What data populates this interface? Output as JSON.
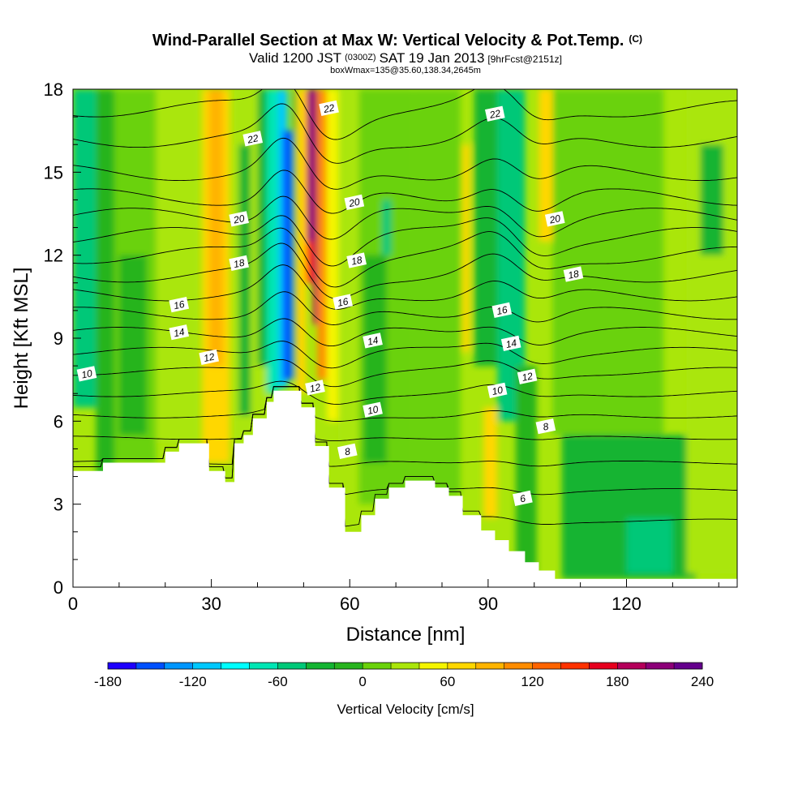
{
  "header": {
    "title": "Wind-Parallel Section at Max W: Vertical Velocity & Pot.Temp.",
    "copyright": "(C)",
    "valid_prefix": "Valid 1200 JST",
    "valid_utc": "(0300Z)",
    "valid_date": "SAT 19 Jan 2013",
    "forecast": "[9hrFcst@2151z]",
    "box_info": "boxWmax=135@35.60,138.34,2645m"
  },
  "chart_data": {
    "type": "heatmap",
    "xlabel": "Distance [nm]",
    "ylabel": "Height [Kft MSL]",
    "xlim": [
      0,
      144
    ],
    "ylim": [
      0,
      18
    ],
    "x_ticks": [
      "0",
      "30",
      "60",
      "90",
      "120"
    ],
    "x_tick_values": [
      0,
      30,
      60,
      90,
      120
    ],
    "y_ticks": [
      "0",
      "3",
      "6",
      "9",
      "12",
      "15",
      "18"
    ],
    "y_tick_values": [
      0,
      3,
      6,
      9,
      12,
      15,
      18
    ],
    "colorbar": {
      "label": "Vertical Velocity [cm/s]",
      "min": -180,
      "max": 240,
      "step": 20,
      "tick_labels": [
        "-180",
        "-120",
        "-60",
        "0",
        "60",
        "120",
        "180",
        "240"
      ],
      "tick_values": [
        -180,
        -120,
        -60,
        0,
        60,
        120,
        180,
        240
      ],
      "colors": [
        "#1e00ff",
        "#0050ff",
        "#0096ff",
        "#00c8ff",
        "#00ffff",
        "#00e6b4",
        "#00c878",
        "#14b432",
        "#28b41e",
        "#6ad20a",
        "#aae60a",
        "#f5f500",
        "#ffd700",
        "#ffb400",
        "#ff8c00",
        "#ff6400",
        "#ff3200",
        "#e6001e",
        "#b4005a",
        "#8c0078",
        "#64008c"
      ]
    },
    "velocity_cells": [
      {
        "x": [
          0,
          6
        ],
        "y": [
          6.5,
          18
        ],
        "w": -50
      },
      {
        "x": [
          5,
          9
        ],
        "y": [
          0,
          18
        ],
        "w": -20
      },
      {
        "x": [
          9,
          18
        ],
        "y": [
          4.5,
          18
        ],
        "w": 10
      },
      {
        "x": [
          10,
          16
        ],
        "y": [
          5.5,
          12
        ],
        "w": -20
      },
      {
        "x": [
          18,
          27
        ],
        "y": [
          5.2,
          18
        ],
        "w": 30
      },
      {
        "x": [
          28,
          34
        ],
        "y": [
          4.5,
          18
        ],
        "w": 60
      },
      {
        "x": [
          29.5,
          32.5
        ],
        "y": [
          8,
          18
        ],
        "w": 80
      },
      {
        "x": [
          35,
          42
        ],
        "y": [
          4.5,
          18
        ],
        "w": 20
      },
      {
        "x": [
          36,
          38.5
        ],
        "y": [
          6.2,
          16
        ],
        "w": -40
      },
      {
        "x": [
          40,
          42.5
        ],
        "y": [
          8,
          18
        ],
        "w": -40
      },
      {
        "x": [
          42,
          44.5
        ],
        "y": [
          7,
          18
        ],
        "w": -80
      },
      {
        "x": [
          44.5,
          46.5
        ],
        "y": [
          7.2,
          18
        ],
        "w": -120
      },
      {
        "x": [
          45.5,
          47.5
        ],
        "y": [
          7.5,
          16.5
        ],
        "w": -160
      },
      {
        "x": [
          47.5,
          48.5
        ],
        "y": [
          7.5,
          18
        ],
        "w": -40
      },
      {
        "x": [
          48.5,
          50.5
        ],
        "y": [
          7,
          18
        ],
        "w": 70
      },
      {
        "x": [
          50.5,
          52
        ],
        "y": [
          11,
          18
        ],
        "w": 150
      },
      {
        "x": [
          51,
          52.5
        ],
        "y": [
          12.5,
          18
        ],
        "w": 240
      },
      {
        "x": [
          52,
          53.5
        ],
        "y": [
          9.5,
          18
        ],
        "w": 180
      },
      {
        "x": [
          53,
          55
        ],
        "y": [
          7.5,
          18
        ],
        "w": 110
      },
      {
        "x": [
          55,
          57.5
        ],
        "y": [
          6,
          18
        ],
        "w": 50
      },
      {
        "x": [
          57.5,
          62
        ],
        "y": [
          5,
          18
        ],
        "w": 20
      },
      {
        "x": [
          62,
          74
        ],
        "y": [
          3,
          18
        ],
        "w": 5
      },
      {
        "x": [
          63,
          68
        ],
        "y": [
          4.5,
          12
        ],
        "w": -20
      },
      {
        "x": [
          67,
          69
        ],
        "y": [
          12,
          14
        ],
        "w": -60
      },
      {
        "x": [
          74,
          84
        ],
        "y": [
          3.3,
          18
        ],
        "w": 10
      },
      {
        "x": [
          84.5,
          86
        ],
        "y": [
          8.5,
          16
        ],
        "w": 60
      },
      {
        "x": [
          87,
          92
        ],
        "y": [
          8,
          18
        ],
        "w": -40
      },
      {
        "x": [
          89,
          92
        ],
        "y": [
          2.5,
          6.5
        ],
        "w": 60
      },
      {
        "x": [
          92,
          98
        ],
        "y": [
          6,
          18
        ],
        "w": -50
      },
      {
        "x": [
          96,
          100.5
        ],
        "y": [
          0.5,
          8
        ],
        "w": -20
      },
      {
        "x": [
          101,
          104
        ],
        "y": [
          12.5,
          18
        ],
        "w": 60
      },
      {
        "x": [
          104,
          128
        ],
        "y": [
          5.5,
          18
        ],
        "w": 10
      },
      {
        "x": [
          106,
          135
        ],
        "y": [
          0.3,
          5.5
        ],
        "w": -30
      },
      {
        "x": [
          120,
          130
        ],
        "y": [
          0.5,
          2.5
        ],
        "w": -60
      },
      {
        "x": [
          133,
          144
        ],
        "y": [
          0.5,
          18
        ],
        "w": 20
      },
      {
        "x": [
          136,
          141
        ],
        "y": [
          12,
          16
        ],
        "w": -30
      }
    ],
    "terrain": [
      [
        0,
        4.2
      ],
      [
        6.5,
        4.2
      ],
      [
        6.5,
        4.5
      ],
      [
        20,
        4.5
      ],
      [
        20,
        4.9
      ],
      [
        23,
        4.9
      ],
      [
        23,
        5.2
      ],
      [
        29.5,
        5.2
      ],
      [
        29.5,
        4.2
      ],
      [
        33,
        4.2
      ],
      [
        33,
        3.8
      ],
      [
        35,
        3.8
      ],
      [
        35,
        5.2
      ],
      [
        37,
        5.2
      ],
      [
        37,
        5.5
      ],
      [
        39,
        5.5
      ],
      [
        39,
        6.1
      ],
      [
        42,
        6.1
      ],
      [
        42,
        6.7
      ],
      [
        43.5,
        6.7
      ],
      [
        43.5,
        7.1
      ],
      [
        49.5,
        7.1
      ],
      [
        49.5,
        6.5
      ],
      [
        52.5,
        6.5
      ],
      [
        52.5,
        5.1
      ],
      [
        55.5,
        5.1
      ],
      [
        55.5,
        3.6
      ],
      [
        59,
        3.6
      ],
      [
        59,
        2
      ],
      [
        62.5,
        2
      ],
      [
        62.5,
        2.6
      ],
      [
        65.5,
        2.6
      ],
      [
        65.5,
        3.2
      ],
      [
        68.5,
        3.2
      ],
      [
        68.5,
        3.6
      ],
      [
        72,
        3.6
      ],
      [
        72,
        3.85
      ],
      [
        78.5,
        3.85
      ],
      [
        78.5,
        3.6
      ],
      [
        81.5,
        3.6
      ],
      [
        81.5,
        3.3
      ],
      [
        84.5,
        3.3
      ],
      [
        84.5,
        2.6
      ],
      [
        88.5,
        2.6
      ],
      [
        88.5,
        2.05
      ],
      [
        91.5,
        2.05
      ],
      [
        91.5,
        1.7
      ],
      [
        94.5,
        1.7
      ],
      [
        94.5,
        1.3
      ],
      [
        98,
        1.3
      ],
      [
        98,
        0.9
      ],
      [
        101,
        0.9
      ],
      [
        101,
        0.6
      ],
      [
        104.5,
        0.6
      ],
      [
        104.5,
        0.3
      ],
      [
        144,
        0.3
      ],
      [
        144,
        0
      ]
    ],
    "isentropes": {
      "levels": [
        5,
        6,
        7,
        8,
        9,
        10,
        11,
        12,
        13,
        14,
        15,
        16,
        17,
        18,
        19,
        20,
        21,
        22,
        23
      ],
      "base_y": {
        "5": 2.4,
        "6": 3.5,
        "7": 4.5,
        "8": 5.4,
        "9": 6.2,
        "10": 7.0,
        "11": 7.8,
        "12": 8.5,
        "13": 9.2,
        "14": 9.9,
        "15": 10.6,
        "16": 11.3,
        "17": 12.0,
        "18": 12.7,
        "19": 13.4,
        "20": 14.1,
        "21": 15.0,
        "22": 16.2,
        "23": 17.3
      },
      "labels": [
        {
          "level": 22,
          "text": "22",
          "x": 39,
          "y": 16.2
        },
        {
          "level": 20,
          "text": "20",
          "x": 36,
          "y": 13.3
        },
        {
          "level": 18,
          "text": "18",
          "x": 36,
          "y": 11.7
        },
        {
          "level": 16,
          "text": "16",
          "x": 23,
          "y": 10.2
        },
        {
          "level": 14,
          "text": "14",
          "x": 23,
          "y": 9.2
        },
        {
          "level": 12,
          "text": "12",
          "x": 29.5,
          "y": 8.3
        },
        {
          "level": 10,
          "text": "10",
          "x": 3,
          "y": 7.7
        },
        {
          "level": 22,
          "text": "22",
          "x": 55.5,
          "y": 17.3
        },
        {
          "level": 20,
          "text": "20",
          "x": 61,
          "y": 13.9
        },
        {
          "level": 18,
          "text": "18",
          "x": 61.5,
          "y": 11.8
        },
        {
          "level": 16,
          "text": "16",
          "x": 58.5,
          "y": 10.3
        },
        {
          "level": 14,
          "text": "14",
          "x": 65,
          "y": 8.9
        },
        {
          "level": 12,
          "text": "12",
          "x": 52.5,
          "y": 7.2
        },
        {
          "level": 10,
          "text": "10",
          "x": 65,
          "y": 6.4
        },
        {
          "level": 8,
          "text": "8",
          "x": 59.5,
          "y": 4.9
        },
        {
          "level": 22,
          "text": "22",
          "x": 91.5,
          "y": 17.1
        },
        {
          "level": 20,
          "text": "20",
          "x": 104.5,
          "y": 13.3
        },
        {
          "level": 18,
          "text": "18",
          "x": 108.5,
          "y": 11.3
        },
        {
          "level": 16,
          "text": "16",
          "x": 93,
          "y": 10.0
        },
        {
          "level": 14,
          "text": "14",
          "x": 95,
          "y": 8.8
        },
        {
          "level": 12,
          "text": "12",
          "x": 98.5,
          "y": 7.6
        },
        {
          "level": 10,
          "text": "10",
          "x": 92,
          "y": 7.1
        },
        {
          "level": 8,
          "text": "8",
          "x": 102.5,
          "y": 5.8
        },
        {
          "level": 6,
          "text": "6",
          "x": 97.5,
          "y": 3.2
        }
      ]
    }
  }
}
